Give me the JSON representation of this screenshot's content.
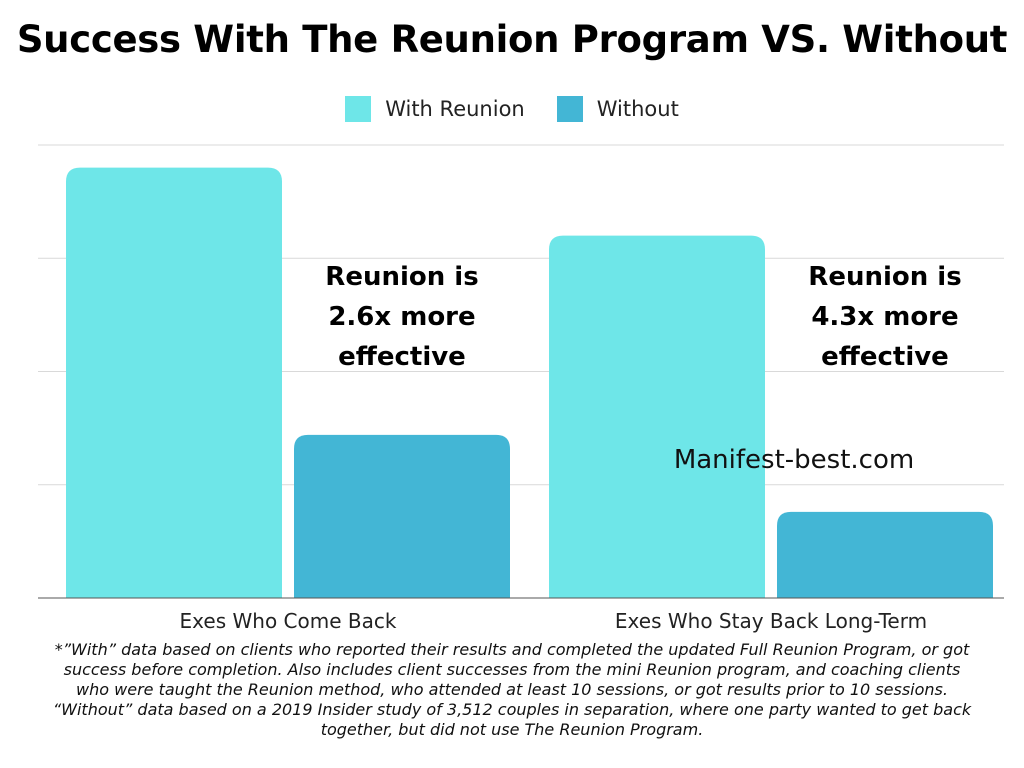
{
  "chart_data": {
    "type": "bar",
    "title": "Success With The Reunion Program VS. Without",
    "categories": [
      "Exes Who Come Back",
      "Exes Who Stay Back Long-Term"
    ],
    "series": [
      {
        "name": "With Reunion",
        "color": "#6ee6e8",
        "values": [
          95,
          80
        ]
      },
      {
        "name": "Without",
        "color": "#43b6d5",
        "values": [
          36,
          19
        ]
      }
    ],
    "ylim": [
      0,
      100
    ],
    "grid": true,
    "legend_position": "top-center",
    "annotations": [
      {
        "category": 0,
        "lines": [
          "Reunion is",
          "2.6x more",
          "effective"
        ]
      },
      {
        "category": 1,
        "lines": [
          "Reunion is",
          "4.3x more",
          "effective"
        ]
      }
    ]
  },
  "watermark": "Manifest-best.com",
  "footnote": [
    "*”With” data based on clients who reported their results and completed the updated Full Reunion Program, or got",
    "success before completion. Also includes client successes from the mini Reunion program, and coaching clients",
    "who were taught the Reunion method, who attended at least 10 sessions, or got results prior to 10 sessions.",
    "“Without” data based on a 2019 Insider study of 3,512 couples in separation, where one party wanted to get back",
    "together, but did not use The Reunion Program."
  ]
}
